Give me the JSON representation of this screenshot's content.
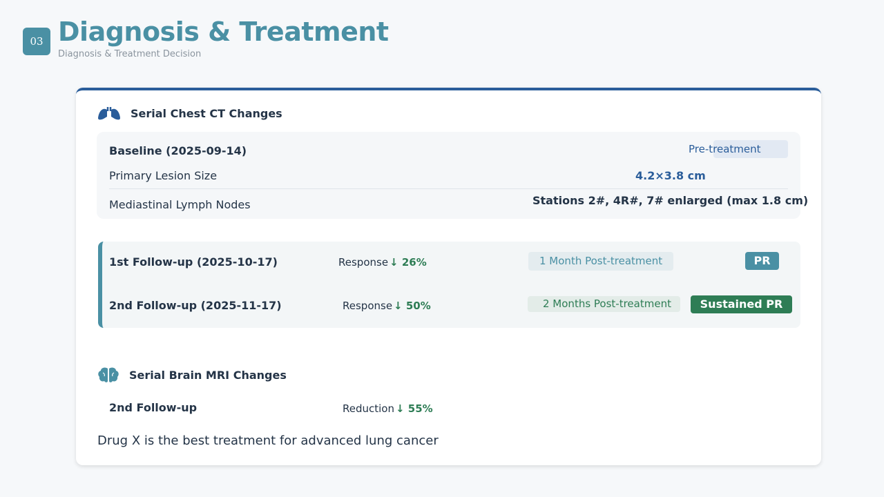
{
  "header": {
    "section_number": "03",
    "title": "Diagnosis & Treatment",
    "subtitle": "Diagnosis & Treatment Decision"
  },
  "ct": {
    "heading": "Serial Chest CT Changes",
    "icon": "lungs-icon",
    "baseline": {
      "title": "Baseline (2025-09-14)",
      "tag": "Pre-treatment",
      "rows": [
        {
          "label": "Primary Lesion Size",
          "value": "4.2×3.8 cm"
        },
        {
          "label": "Mediastinal Lymph Nodes",
          "value": "Stations 2#, 4R#, 7# enlarged (max 1.8 cm)"
        }
      ]
    },
    "followups": [
      {
        "title": "1st Follow-up (2025-10-17)",
        "response_label": "Response",
        "response_value": "↓ 26%",
        "period": "1 Month Post-treatment",
        "status": "PR"
      },
      {
        "title": "2nd Follow-up (2025-11-17)",
        "response_label": "Response",
        "response_value": "↓ 50%",
        "period": "2 Months Post-treatment",
        "status": "Sustained PR"
      }
    ]
  },
  "mri": {
    "heading": "Serial Brain MRI Changes",
    "icon": "brain-icon",
    "row": {
      "title": "2nd Follow-up",
      "label": "Reduction",
      "value": "↓ 55%"
    }
  },
  "claim": "Drug X is the best treatment for advanced lung cancer",
  "colors": {
    "accent": "#4a90a4",
    "primary": "#2a5d9a",
    "positive": "#2e7d55",
    "text": "#243447"
  }
}
